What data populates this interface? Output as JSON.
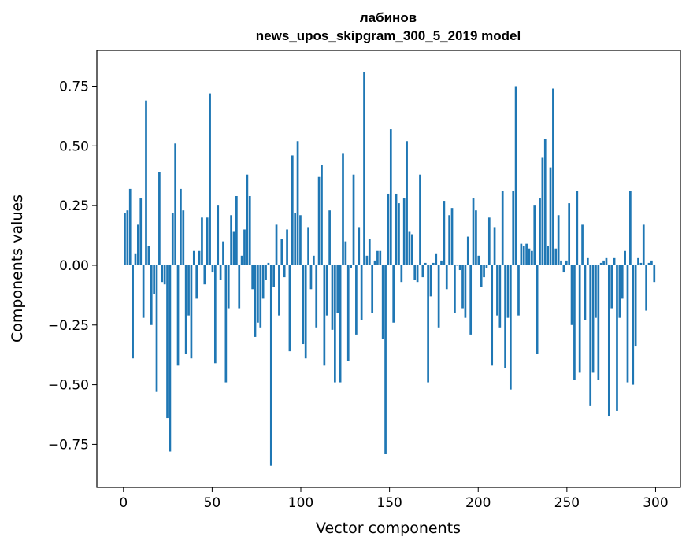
{
  "chart_data": {
    "type": "bar",
    "title_lines": [
      "лабинов",
      "news_upos_skipgram_300_5_2019 model"
    ],
    "xlabel": "Vector components",
    "ylabel": "Components values",
    "xlim": [
      -15,
      314
    ],
    "ylim": [
      -0.93,
      0.9
    ],
    "xticks": [
      0,
      50,
      100,
      150,
      200,
      250,
      300
    ],
    "yticks": [
      0.75,
      0.5,
      0.25,
      0.0,
      -0.25,
      -0.5,
      -0.75
    ],
    "ytick_labels": [
      "0.75",
      "0.50",
      "0.25",
      "0.00",
      "−0.25",
      "−0.50",
      "−0.75"
    ],
    "grid": false,
    "legend": "none",
    "bar_color": "#1f77b4",
    "values": [
      0.22,
      0.23,
      0.32,
      -0.39,
      0.05,
      0.17,
      0.28,
      -0.22,
      0.69,
      0.08,
      -0.25,
      -0.12,
      -0.53,
      0.39,
      -0.07,
      -0.08,
      -0.64,
      -0.78,
      0.22,
      0.51,
      -0.42,
      0.32,
      0.23,
      -0.37,
      -0.21,
      -0.39,
      0.06,
      -0.14,
      0.06,
      0.2,
      -0.08,
      0.2,
      0.72,
      -0.03,
      -0.41,
      0.25,
      -0.06,
      0.1,
      -0.49,
      -0.18,
      0.21,
      0.14,
      0.29,
      -0.18,
      0.04,
      0.15,
      0.38,
      0.29,
      -0.1,
      -0.3,
      -0.24,
      -0.26,
      -0.14,
      -0.06,
      0.01,
      -0.84,
      -0.09,
      0.17,
      -0.21,
      0.11,
      -0.05,
      0.15,
      -0.36,
      0.46,
      0.22,
      0.52,
      0.21,
      -0.33,
      -0.39,
      0.16,
      -0.1,
      0.04,
      -0.26,
      0.37,
      0.42,
      -0.42,
      -0.21,
      0.23,
      -0.27,
      -0.49,
      -0.2,
      -0.49,
      0.47,
      0.1,
      -0.4,
      -0.01,
      0.38,
      -0.29,
      0.16,
      -0.23,
      0.81,
      0.04,
      0.11,
      -0.2,
      0.02,
      0.06,
      0.06,
      -0.31,
      -0.79,
      0.3,
      0.57,
      -0.24,
      0.3,
      0.26,
      -0.07,
      0.28,
      0.52,
      0.14,
      0.13,
      -0.06,
      -0.07,
      0.38,
      -0.05,
      0.01,
      -0.49,
      -0.13,
      0.01,
      0.05,
      -0.26,
      0.02,
      0.27,
      -0.1,
      0.21,
      0.24,
      -0.2,
      0.0,
      -0.02,
      -0.18,
      -0.22,
      0.12,
      -0.29,
      0.28,
      0.23,
      0.04,
      -0.09,
      -0.05,
      -0.01,
      0.2,
      -0.42,
      0.16,
      -0.21,
      -0.26,
      0.31,
      -0.43,
      -0.22,
      -0.52,
      0.31,
      0.75,
      -0.21,
      0.09,
      0.08,
      0.09,
      0.07,
      0.06,
      0.25,
      -0.37,
      0.28,
      0.45,
      0.53,
      0.08,
      0.41,
      0.74,
      0.07,
      0.21,
      0.02,
      -0.03,
      0.02,
      0.26,
      -0.25,
      -0.48,
      0.31,
      -0.45,
      0.17,
      -0.23,
      0.03,
      -0.59,
      -0.45,
      -0.22,
      -0.48,
      0.01,
      0.02,
      0.03,
      -0.63,
      -0.18,
      0.03,
      -0.61,
      -0.22,
      -0.14,
      0.06,
      -0.49,
      0.31,
      -0.5,
      -0.34,
      0.03,
      0.01,
      0.17,
      -0.19,
      0.01,
      0.02,
      -0.07
    ]
  }
}
